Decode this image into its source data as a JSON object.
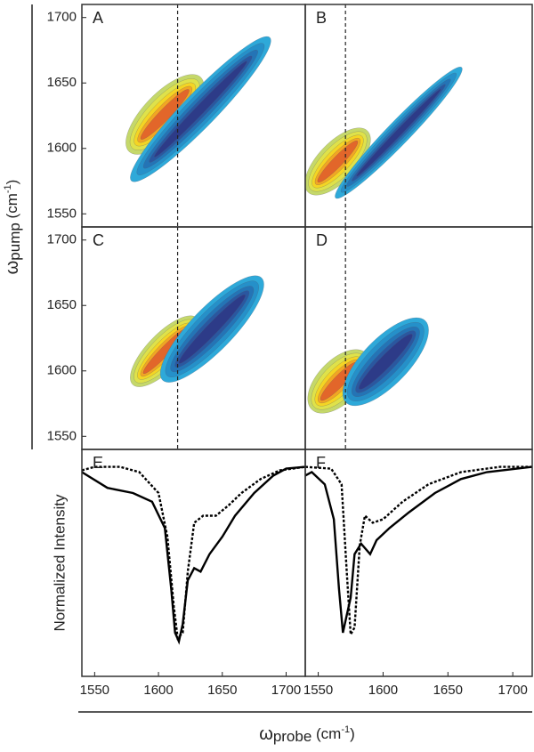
{
  "y_label": {
    "symbol": "ω",
    "sub": "pump",
    "unit": " (cm",
    "sup": "-1",
    "end": ")"
  },
  "x_label": {
    "symbol": "ω",
    "sub": "probe",
    "unit": " (cm",
    "sup": "-1",
    "end": ")"
  },
  "chart_data": [
    {
      "type": "contour",
      "panel": "A",
      "xlim": [
        1540,
        1715
      ],
      "ylim": [
        1540,
        1710
      ],
      "yticks": [
        1550,
        1600,
        1650,
        1700
      ],
      "dashed_x": 1615
    },
    {
      "type": "contour",
      "panel": "B",
      "xlim": [
        1540,
        1715
      ],
      "ylim": [
        1540,
        1710
      ],
      "dashed_x": 1571
    },
    {
      "type": "contour",
      "panel": "C",
      "xlim": [
        1540,
        1715
      ],
      "ylim": [
        1540,
        1710
      ],
      "yticks": [
        1550,
        1600,
        1650,
        1700
      ],
      "dashed_x": 1615
    },
    {
      "type": "contour",
      "panel": "D",
      "xlim": [
        1540,
        1715
      ],
      "ylim": [
        1540,
        1710
      ],
      "dashed_x": 1571
    },
    {
      "type": "line",
      "panel": "E",
      "ylabel": "Normalized Intensity",
      "xlim": [
        1540,
        1715
      ],
      "ylim": [
        -0.2,
        1.1
      ],
      "xticks": [
        1550,
        1600,
        1650,
        1700
      ],
      "series": [
        {
          "style": "solid",
          "color": "#000000",
          "x": [
            1540,
            1560,
            1580,
            1595,
            1605,
            1610,
            1613,
            1616,
            1619,
            1623,
            1628,
            1633,
            1640,
            1650,
            1660,
            1675,
            1690,
            1700,
            1715
          ],
          "values": [
            0.97,
            0.88,
            0.85,
            0.8,
            0.65,
            0.3,
            0.05,
            0.0,
            0.1,
            0.35,
            0.42,
            0.4,
            0.5,
            0.6,
            0.72,
            0.85,
            0.95,
            0.99,
            1.0
          ]
        },
        {
          "style": "dashed",
          "color": "#000000",
          "x": [
            1540,
            1550,
            1570,
            1585,
            1600,
            1607,
            1612,
            1615,
            1619,
            1623,
            1628,
            1635,
            1645,
            1655,
            1665,
            1680,
            1695,
            1715
          ],
          "values": [
            0.98,
            1.0,
            1.0,
            0.97,
            0.85,
            0.6,
            0.2,
            0.02,
            0.05,
            0.4,
            0.68,
            0.72,
            0.72,
            0.78,
            0.85,
            0.93,
            0.98,
            1.0
          ]
        }
      ]
    },
    {
      "type": "line",
      "panel": "F",
      "xlim": [
        1540,
        1715
      ],
      "ylim": [
        -0.2,
        1.1
      ],
      "xticks": [
        1550,
        1600,
        1650,
        1700
      ],
      "series": [
        {
          "style": "solid",
          "color": "#000000",
          "x": [
            1540,
            1545,
            1555,
            1562,
            1566,
            1569,
            1572,
            1575,
            1578,
            1583,
            1590,
            1595,
            1605,
            1620,
            1640,
            1660,
            1680,
            1715
          ],
          "values": [
            0.95,
            0.97,
            0.9,
            0.7,
            0.3,
            0.05,
            0.15,
            0.25,
            0.5,
            0.56,
            0.5,
            0.58,
            0.65,
            0.74,
            0.85,
            0.93,
            0.97,
            1.0
          ]
        },
        {
          "style": "dashed",
          "color": "#000000",
          "x": [
            1540,
            1560,
            1568,
            1572,
            1575,
            1578,
            1582,
            1586,
            1592,
            1600,
            1615,
            1635,
            1660,
            1690,
            1715
          ],
          "values": [
            1.0,
            0.99,
            0.9,
            0.4,
            0.04,
            0.08,
            0.55,
            0.72,
            0.68,
            0.7,
            0.8,
            0.9,
            0.97,
            1.0,
            1.0
          ]
        }
      ]
    }
  ]
}
